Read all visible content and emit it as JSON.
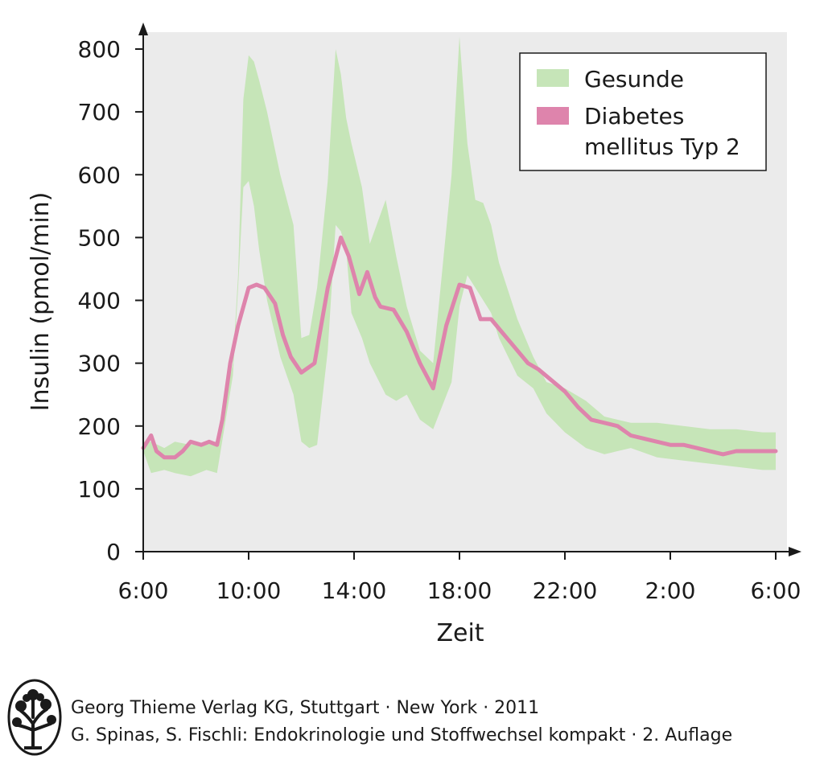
{
  "chart_data": {
    "type": "area",
    "title": "",
    "xlabel": "Zeit",
    "ylabel": "Insulin (pmol/min)",
    "x_ticks": [
      "6:00",
      "10:00",
      "14:00",
      "18:00",
      "22:00",
      "2:00",
      "6:00"
    ],
    "x_unit": "hours since 6:00",
    "y_ticks": [
      "0",
      "100",
      "200",
      "300",
      "400",
      "500",
      "600",
      "700",
      "800"
    ],
    "ylim": [
      0,
      800
    ],
    "xlim": [
      0,
      24
    ],
    "grid": false,
    "legend_position": "top-right",
    "colors": {
      "band": "#c6e5b8",
      "line": "#de84ac",
      "background": "#ebebeb"
    },
    "series": [
      {
        "name": "Gesunde",
        "kind": "band",
        "x": [
          0,
          0.3,
          0.8,
          1.2,
          1.8,
          2.4,
          2.8,
          3.4,
          3.6,
          3.8,
          4.0,
          4.2,
          4.4,
          4.7,
          5.2,
          5.7,
          6.0,
          6.3,
          6.6,
          7.0,
          7.3,
          7.5,
          7.7,
          7.9,
          8.3,
          8.6,
          9.2,
          9.6,
          10.0,
          10.5,
          11.0,
          11.7,
          12.0,
          12.3,
          12.6,
          12.9,
          13.2,
          13.5,
          14.2,
          14.8,
          15.3,
          16.0,
          16.8,
          17.5,
          18.5,
          19.5,
          20.5,
          21.5,
          22.5,
          23.5,
          24
        ],
        "lower": [
          160,
          125,
          130,
          125,
          120,
          130,
          125,
          280,
          420,
          580,
          590,
          550,
          480,
          400,
          310,
          250,
          175,
          165,
          170,
          320,
          520,
          510,
          480,
          380,
          340,
          300,
          250,
          240,
          250,
          210,
          195,
          270,
          390,
          440,
          420,
          400,
          380,
          340,
          280,
          260,
          220,
          190,
          165,
          155,
          165,
          150,
          145,
          140,
          135,
          130,
          130
        ],
        "upper": [
          175,
          175,
          165,
          175,
          170,
          175,
          175,
          300,
          440,
          720,
          790,
          780,
          750,
          700,
          600,
          520,
          340,
          345,
          420,
          590,
          800,
          760,
          690,
          650,
          580,
          490,
          560,
          470,
          390,
          320,
          300,
          600,
          820,
          650,
          560,
          555,
          520,
          460,
          370,
          310,
          270,
          260,
          240,
          215,
          205,
          205,
          200,
          195,
          195,
          190,
          190
        ]
      },
      {
        "name": "Diabetes mellitus Typ 2",
        "kind": "line",
        "x": [
          0,
          0.3,
          0.5,
          0.8,
          1.2,
          1.5,
          1.8,
          2.2,
          2.5,
          2.8,
          3.0,
          3.3,
          3.6,
          4.0,
          4.3,
          4.6,
          5.0,
          5.3,
          5.6,
          6.0,
          6.5,
          7.0,
          7.5,
          7.8,
          8.2,
          8.5,
          8.8,
          9.0,
          9.5,
          10.0,
          10.5,
          11.0,
          11.5,
          12.0,
          12.4,
          12.8,
          13.2,
          13.6,
          14.0,
          14.6,
          15.0,
          16.0,
          16.5,
          17.0,
          17.5,
          18.0,
          18.5,
          19.0,
          19.5,
          20.0,
          20.5,
          21.0,
          21.5,
          22.0,
          22.5,
          23.0,
          23.5,
          24
        ],
        "y": [
          165,
          185,
          160,
          150,
          150,
          160,
          175,
          170,
          175,
          170,
          210,
          300,
          360,
          420,
          425,
          420,
          395,
          345,
          310,
          285,
          300,
          420,
          500,
          470,
          410,
          445,
          405,
          390,
          385,
          350,
          300,
          260,
          360,
          425,
          420,
          370,
          370,
          350,
          330,
          300,
          290,
          255,
          230,
          210,
          205,
          200,
          185,
          180,
          175,
          170,
          170,
          165,
          160,
          155,
          160,
          160,
          160,
          160
        ]
      }
    ]
  },
  "credit": {
    "line1": "Georg Thieme Verlag KG, Stuttgart · New York · 2011",
    "line2": "G. Spinas, S. Fischli: Endokrinologie und Stoffwechsel kompakt · 2. Auflage"
  }
}
